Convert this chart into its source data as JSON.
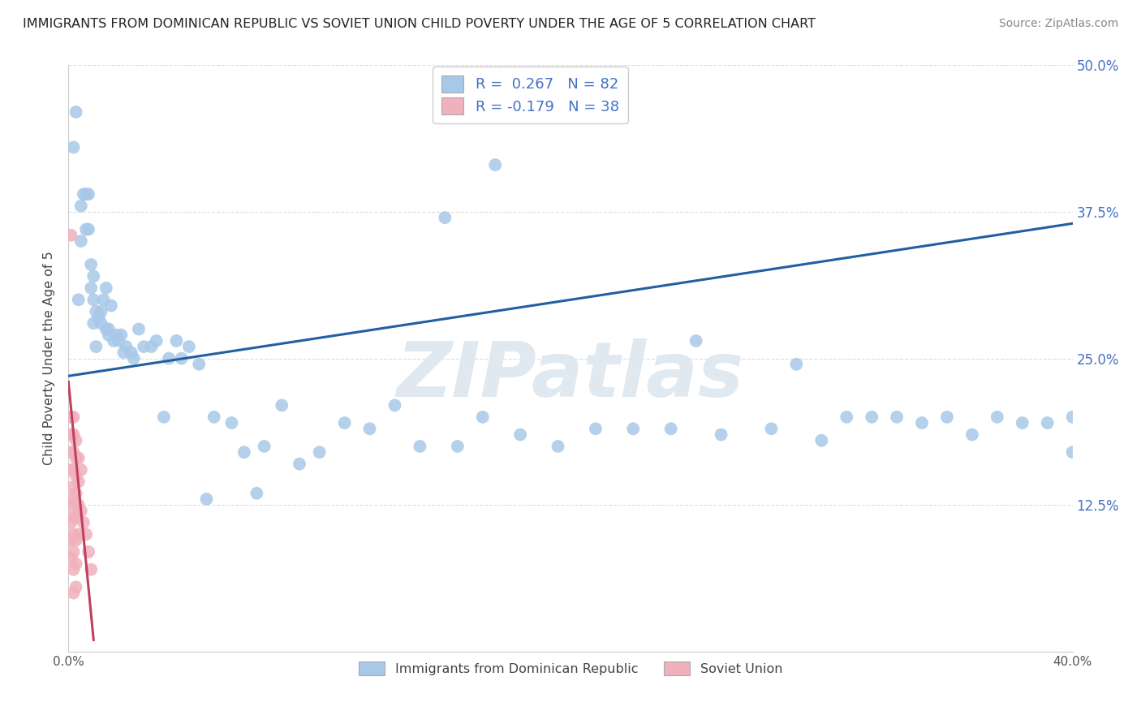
{
  "title": "IMMIGRANTS FROM DOMINICAN REPUBLIC VS SOVIET UNION CHILD POVERTY UNDER THE AGE OF 5 CORRELATION CHART",
  "source": "Source: ZipAtlas.com",
  "ylabel": "Child Poverty Under the Age of 5",
  "xlim": [
    0.0,
    0.4
  ],
  "ylim": [
    0.0,
    0.5
  ],
  "r_dr": 0.267,
  "n_dr": 82,
  "r_su": -0.179,
  "n_su": 38,
  "legend_label_dr": "Immigrants from Dominican Republic",
  "legend_label_su": "Soviet Union",
  "blue_scatter": "#A8C8E8",
  "pink_scatter": "#F0B0BC",
  "blue_line": "#2060A0",
  "pink_line": "#C04060",
  "ytick_color": "#4472C4",
  "grid_color": "#DDDDDD",
  "title_color": "#222222",
  "source_color": "#888888",
  "dr_x": [
    0.002,
    0.003,
    0.004,
    0.005,
    0.005,
    0.006,
    0.007,
    0.007,
    0.008,
    0.008,
    0.009,
    0.009,
    0.01,
    0.01,
    0.01,
    0.011,
    0.011,
    0.012,
    0.013,
    0.013,
    0.014,
    0.015,
    0.015,
    0.016,
    0.016,
    0.017,
    0.018,
    0.019,
    0.02,
    0.021,
    0.022,
    0.023,
    0.025,
    0.026,
    0.028,
    0.03,
    0.033,
    0.035,
    0.038,
    0.04,
    0.043,
    0.045,
    0.048,
    0.052,
    0.058,
    0.065,
    0.07,
    0.078,
    0.085,
    0.092,
    0.1,
    0.11,
    0.12,
    0.13,
    0.14,
    0.155,
    0.165,
    0.18,
    0.195,
    0.21,
    0.225,
    0.24,
    0.26,
    0.28,
    0.3,
    0.32,
    0.34,
    0.36,
    0.38,
    0.4,
    0.15,
    0.17,
    0.25,
    0.29,
    0.31,
    0.33,
    0.35,
    0.37,
    0.39,
    0.4,
    0.055,
    0.075
  ],
  "dr_y": [
    0.43,
    0.46,
    0.3,
    0.38,
    0.35,
    0.39,
    0.39,
    0.36,
    0.36,
    0.39,
    0.31,
    0.33,
    0.32,
    0.3,
    0.28,
    0.29,
    0.26,
    0.285,
    0.28,
    0.29,
    0.3,
    0.275,
    0.31,
    0.27,
    0.275,
    0.295,
    0.265,
    0.27,
    0.265,
    0.27,
    0.255,
    0.26,
    0.255,
    0.25,
    0.275,
    0.26,
    0.26,
    0.265,
    0.2,
    0.25,
    0.265,
    0.25,
    0.26,
    0.245,
    0.2,
    0.195,
    0.17,
    0.175,
    0.21,
    0.16,
    0.17,
    0.195,
    0.19,
    0.21,
    0.175,
    0.175,
    0.2,
    0.185,
    0.175,
    0.19,
    0.19,
    0.19,
    0.185,
    0.19,
    0.18,
    0.2,
    0.195,
    0.185,
    0.195,
    0.2,
    0.37,
    0.415,
    0.265,
    0.245,
    0.2,
    0.2,
    0.2,
    0.2,
    0.195,
    0.17,
    0.13,
    0.135
  ],
  "su_x": [
    0.001,
    0.001,
    0.001,
    0.001,
    0.001,
    0.001,
    0.001,
    0.001,
    0.001,
    0.001,
    0.002,
    0.002,
    0.002,
    0.002,
    0.002,
    0.002,
    0.002,
    0.002,
    0.002,
    0.002,
    0.003,
    0.003,
    0.003,
    0.003,
    0.003,
    0.003,
    0.003,
    0.003,
    0.004,
    0.004,
    0.004,
    0.004,
    0.005,
    0.005,
    0.006,
    0.007,
    0.008,
    0.009
  ],
  "su_y": [
    0.2,
    0.185,
    0.17,
    0.155,
    0.14,
    0.125,
    0.11,
    0.095,
    0.08,
    0.355,
    0.2,
    0.185,
    0.17,
    0.155,
    0.13,
    0.115,
    0.1,
    0.085,
    0.07,
    0.05,
    0.18,
    0.165,
    0.15,
    0.135,
    0.115,
    0.095,
    0.075,
    0.055,
    0.165,
    0.145,
    0.125,
    0.1,
    0.155,
    0.12,
    0.11,
    0.1,
    0.085,
    0.07
  ],
  "dr_line_x": [
    0.0,
    0.4
  ],
  "dr_line_y": [
    0.235,
    0.365
  ],
  "su_line_x": [
    0.0,
    0.01
  ],
  "su_line_y": [
    0.23,
    0.01
  ]
}
